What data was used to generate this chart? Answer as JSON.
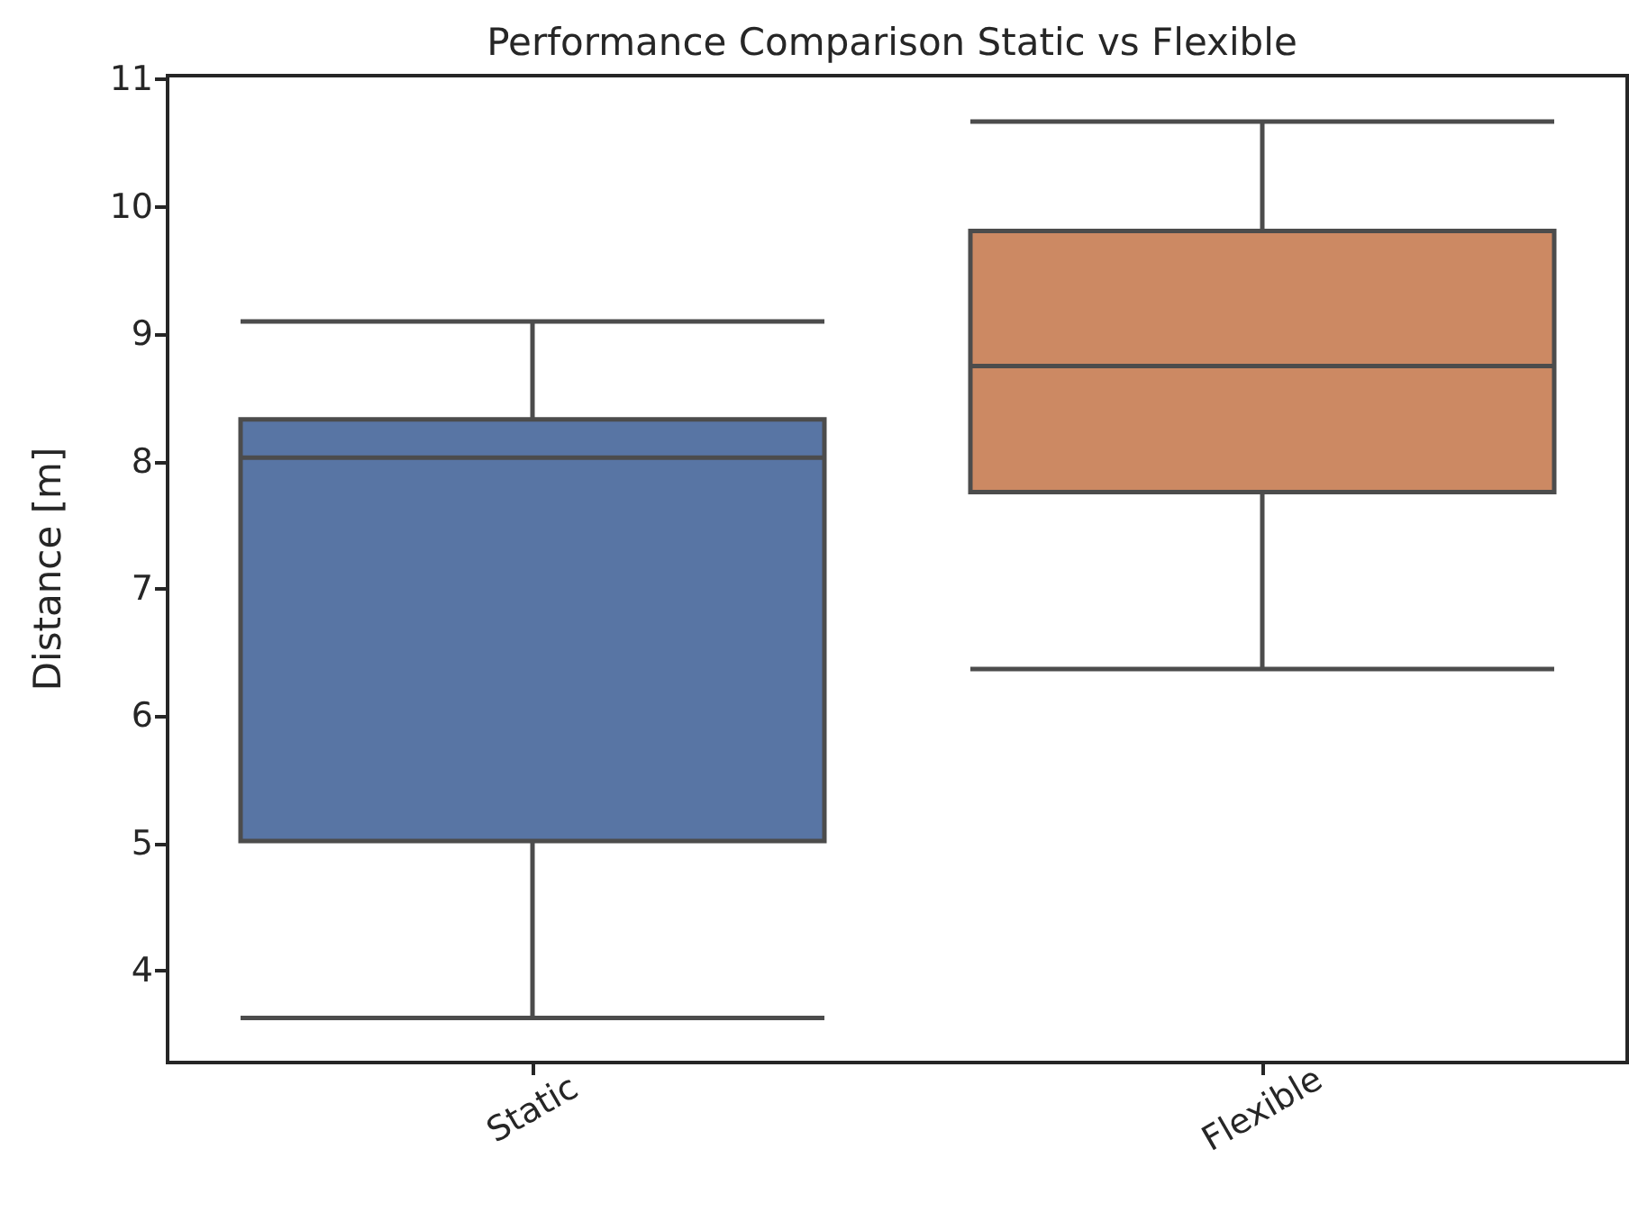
{
  "chart_data": {
    "type": "box",
    "title": "Performance Comparison Static vs Flexible",
    "ylabel": "Distance [m]",
    "categories": [
      "Static",
      "Flexible"
    ],
    "boxes": [
      {
        "low": 3.63,
        "q1": 5.02,
        "median": 8.03,
        "q3": 8.33,
        "high": 9.1
      },
      {
        "low": 6.37,
        "q1": 7.76,
        "median": 8.75,
        "q3": 9.81,
        "high": 10.67
      }
    ],
    "colors": [
      "#5875a4",
      "#cc8963"
    ],
    "ylim": [
      3.28,
      11.03
    ],
    "yticks": [
      4,
      5,
      6,
      7,
      8,
      9,
      10,
      11
    ],
    "grid": false
  }
}
